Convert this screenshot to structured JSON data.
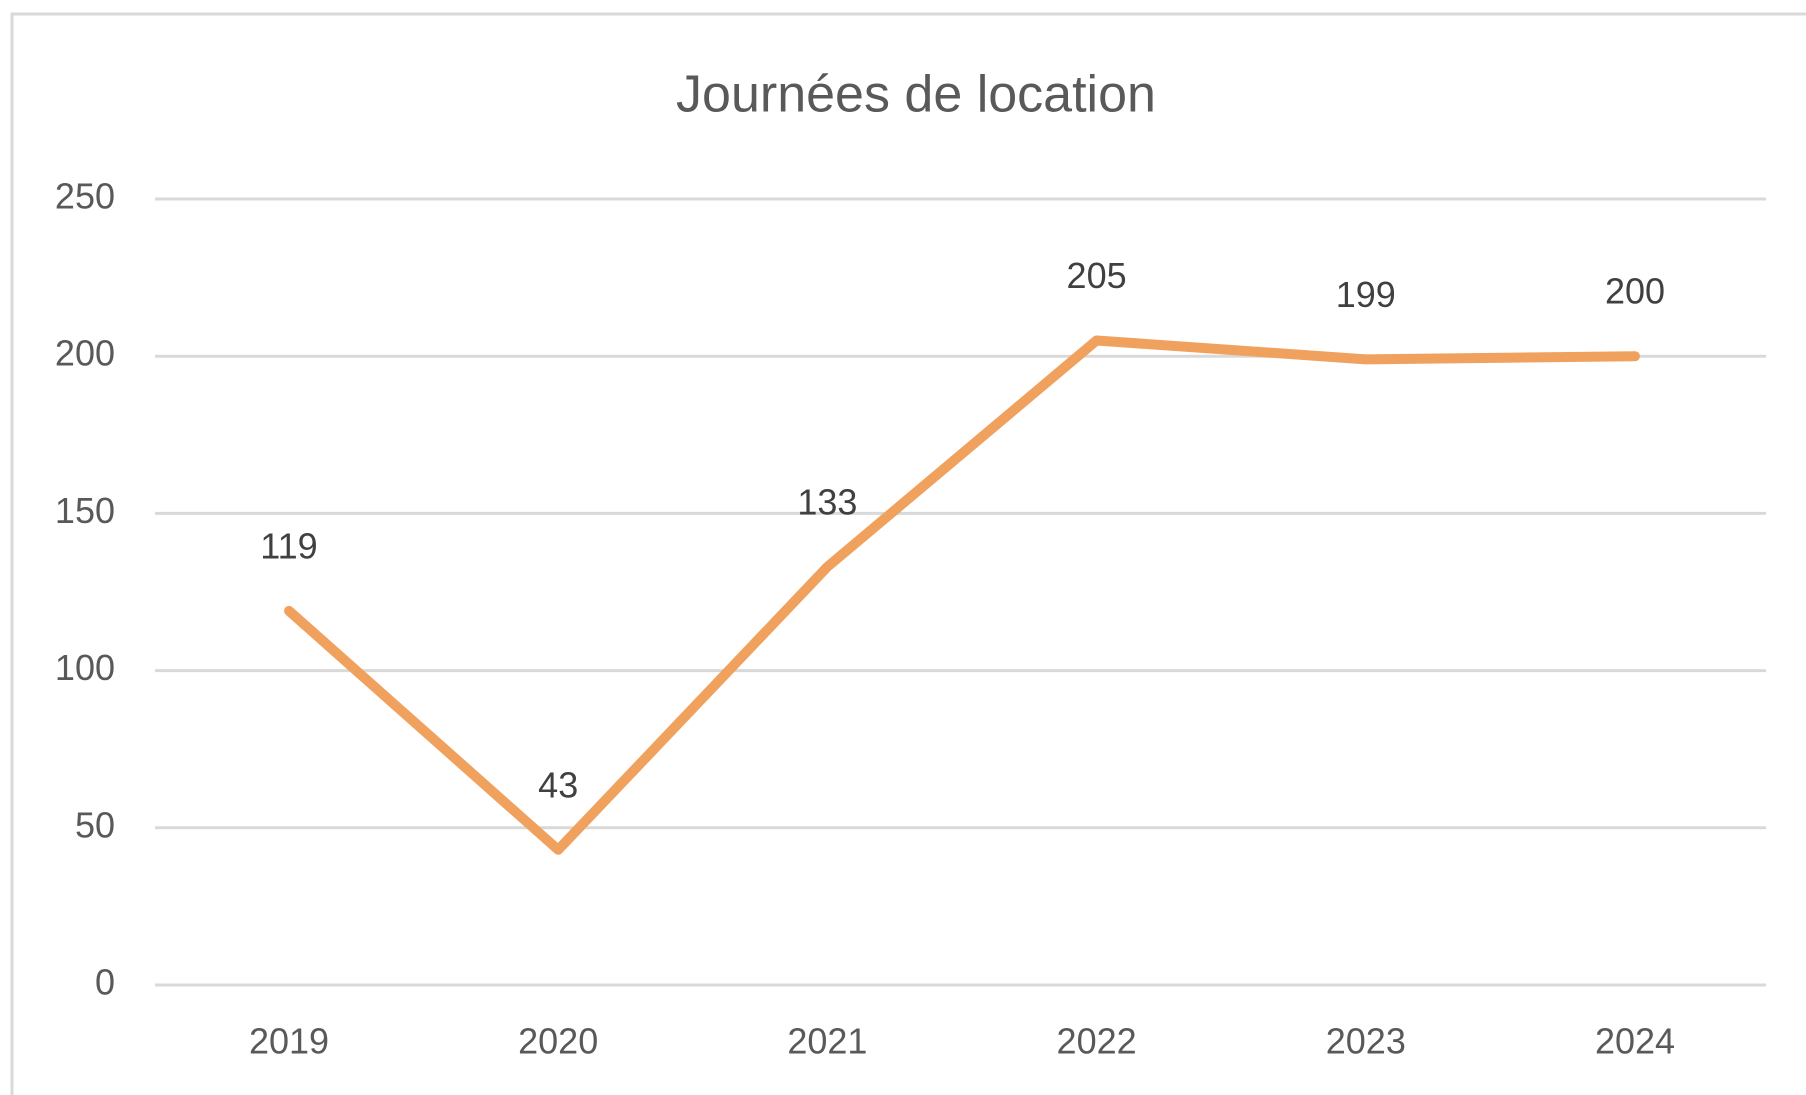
{
  "chart_data": {
    "type": "line",
    "title": "Journées de location",
    "categories": [
      "2019",
      "2020",
      "2021",
      "2022",
      "2023",
      "2024"
    ],
    "values": [
      119,
      43,
      133,
      205,
      199,
      200
    ],
    "color": "#f0a15e",
    "ylim": [
      0,
      250
    ],
    "yticks": [
      0,
      50,
      100,
      150,
      200,
      250
    ],
    "grid": true,
    "data_labels": true
  }
}
